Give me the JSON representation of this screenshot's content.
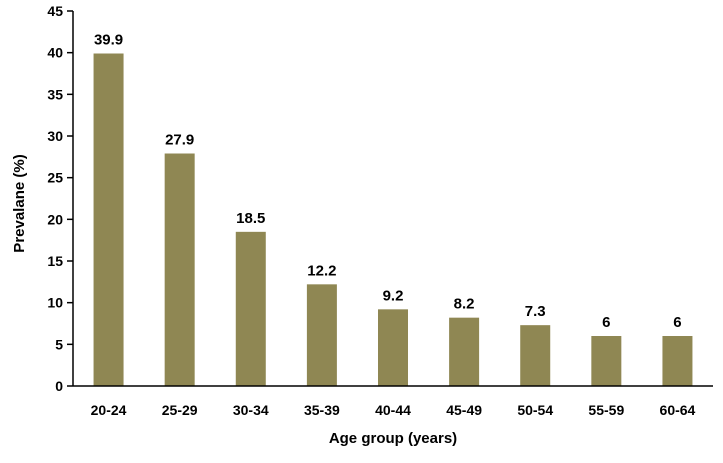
{
  "chart_data": {
    "type": "bar",
    "title": "",
    "xlabel": "Age group (years)",
    "ylabel": "Prevalane (%)",
    "categories": [
      "20-24",
      "25-29",
      "30-34",
      "35-39",
      "40-44",
      "45-49",
      "50-54",
      "55-59",
      "60-64"
    ],
    "values": [
      39.9,
      27.9,
      18.5,
      12.2,
      9.2,
      8.2,
      7.3,
      6,
      6
    ],
    "data_labels": [
      "39.9",
      "27.9",
      "18.5",
      "12.2",
      "9.2",
      "8.2",
      "7.3",
      "6",
      "6"
    ],
    "ylim": [
      0,
      45
    ],
    "yticks": [
      0,
      5,
      10,
      15,
      20,
      25,
      30,
      35,
      40,
      45
    ],
    "grid": false,
    "legend": "none",
    "colors": {
      "bar": "#8f8753",
      "axis": "#000000"
    }
  }
}
